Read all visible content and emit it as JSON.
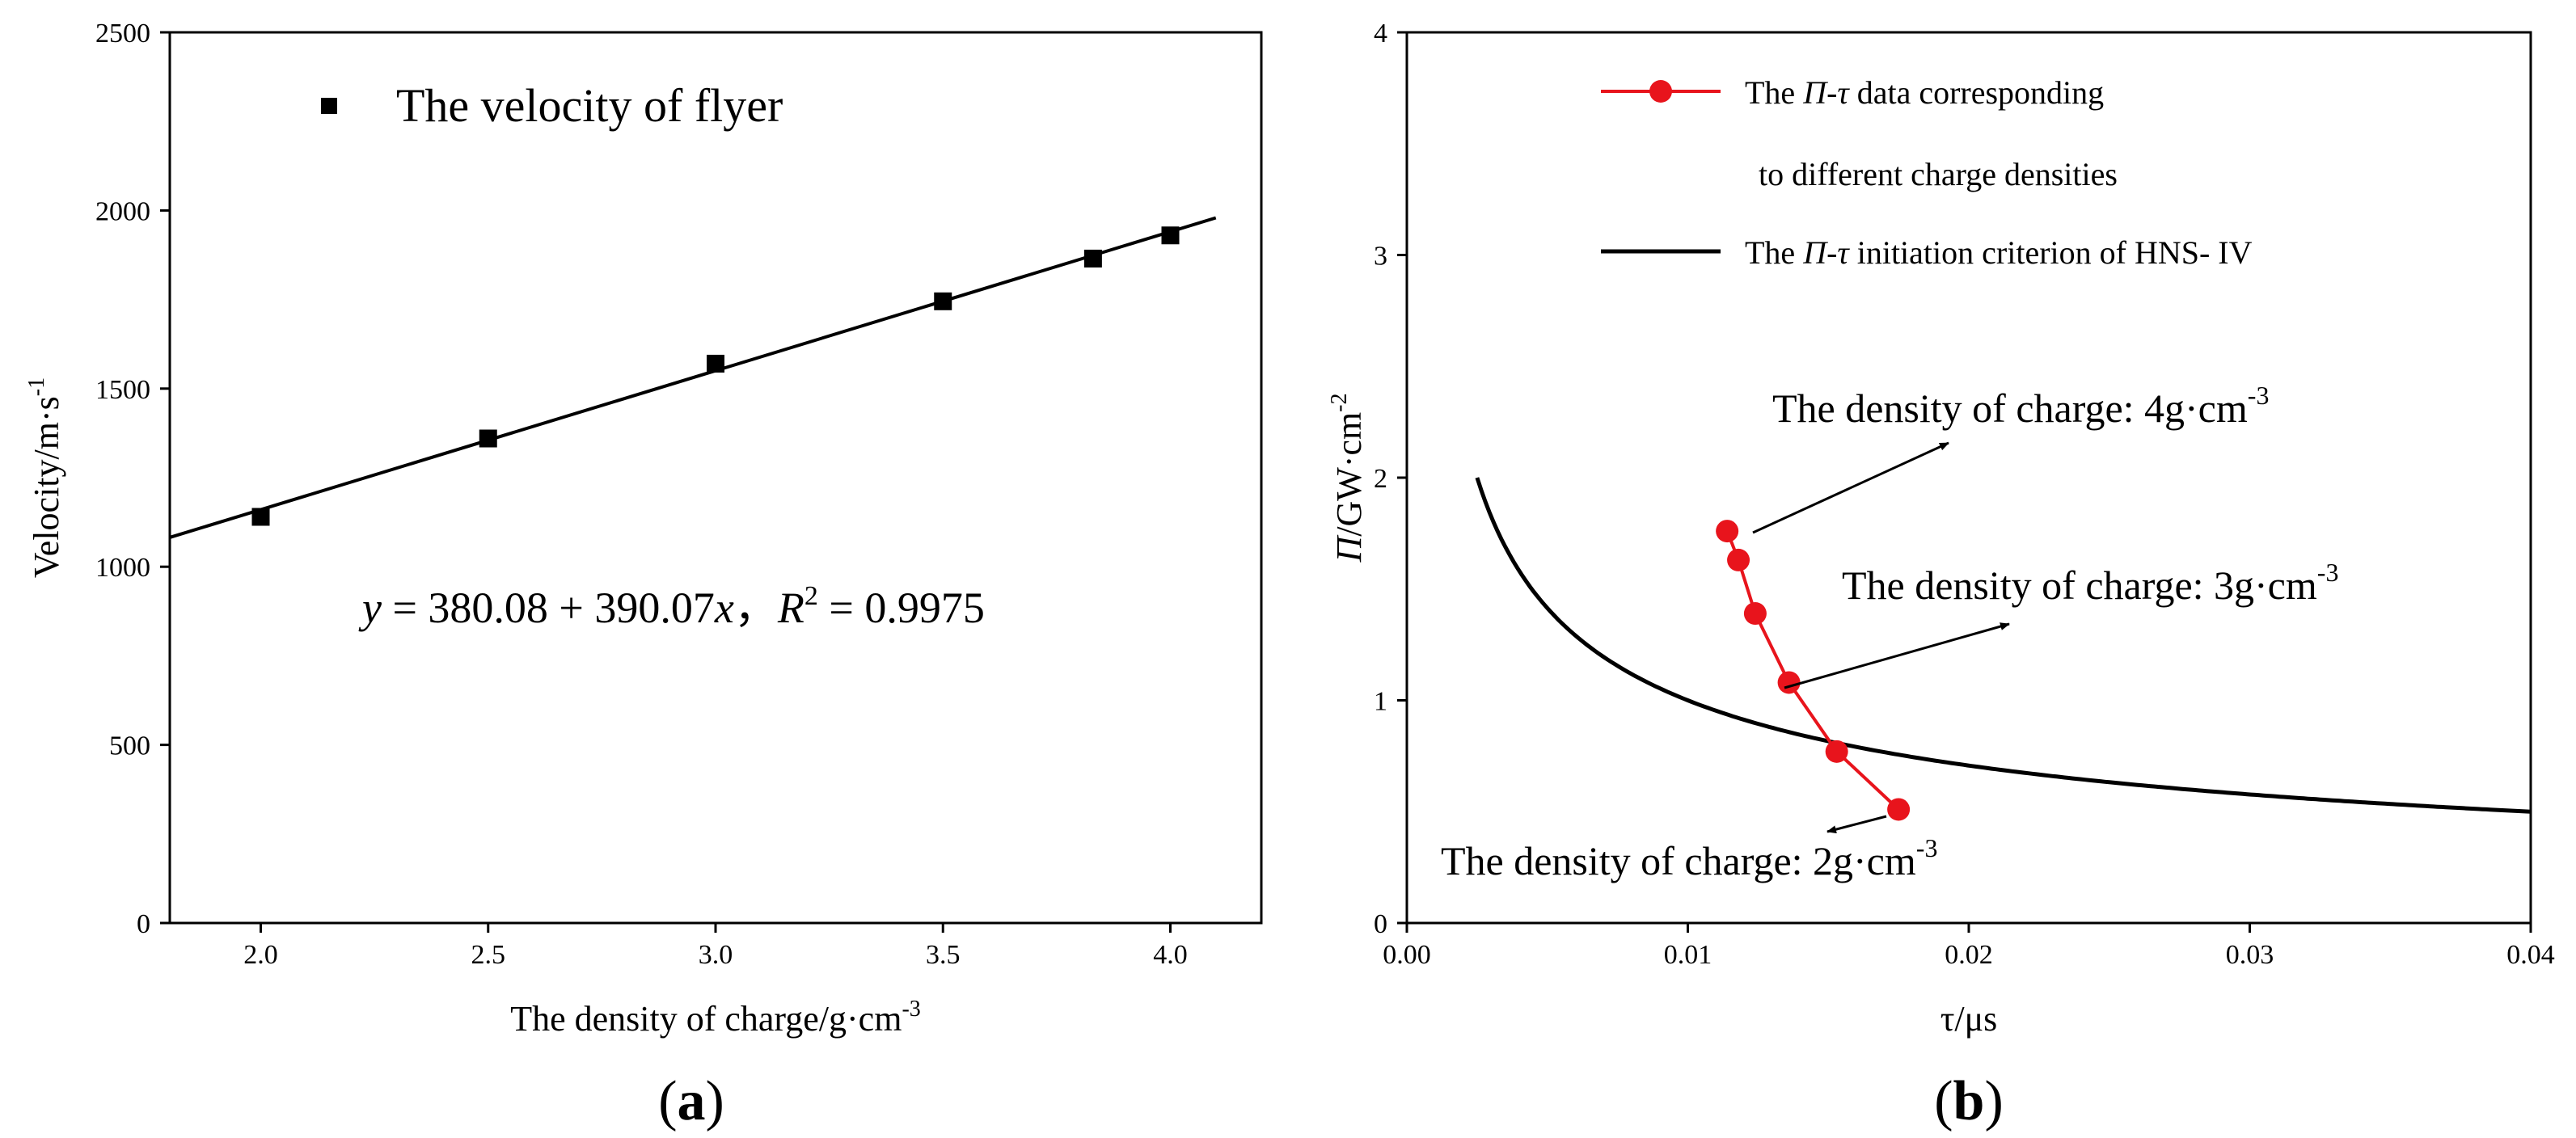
{
  "chart_data": [
    {
      "type": "scatter",
      "panel_label": "a",
      "xlabel": "The density of charge/g·cm",
      "xlabel_sup": "-3",
      "ylabel": "Velocity/m·s",
      "ylabel_sup": "-1",
      "xlim": [
        1.8,
        4.2
      ],
      "ylim": [
        0,
        2500
      ],
      "xticks": [
        2.0,
        2.5,
        3.0,
        3.5,
        4.0
      ],
      "xtick_labels": [
        "2.0",
        "2.5",
        "3.0",
        "3.5",
        "4.0"
      ],
      "yticks": [
        0,
        500,
        1000,
        1500,
        2000,
        2500
      ],
      "ytick_labels": [
        "0",
        "500",
        "1000",
        "1500",
        "2000",
        "2500"
      ],
      "legend": {
        "label": "The velocity of flyer",
        "placement": "top-left"
      },
      "series": [
        {
          "name": "The velocity of flyer",
          "marker": "square",
          "x": [
            2.0,
            2.5,
            3.0,
            3.5,
            3.83,
            4.0
          ],
          "y": [
            1140,
            1360,
            1570,
            1745,
            1865,
            1930
          ]
        }
      ],
      "fit": {
        "intercept": 380.08,
        "slope": 390.07,
        "x_range": [
          1.8,
          4.1
        ]
      },
      "equation": {
        "y": "y",
        "mid": " = 380.08 + 390.07",
        "x": "x",
        "sep": "，",
        "r": "R",
        "r_sup": "2",
        "value": " = 0.9975"
      }
    },
    {
      "type": "line",
      "panel_label": "b",
      "xlabel": "τ/μs",
      "ylabel_var": "Π",
      "ylabel": "/GW·cm",
      "ylabel_sup": "-2",
      "xlim": [
        0,
        0.04
      ],
      "ylim": [
        0,
        4
      ],
      "xticks": [
        0,
        0.01,
        0.02,
        0.03,
        0.04
      ],
      "xtick_labels": [
        "0.00",
        "0.01",
        "0.02",
        "0.03",
        "0.04"
      ],
      "yticks": [
        0,
        1,
        2,
        3,
        4
      ],
      "ytick_labels": [
        "0",
        "1",
        "2",
        "3",
        "4"
      ],
      "series": [
        {
          "name": "The Π-τ data corresponding to different charge densities",
          "color": "#e8141c",
          "marker": "circle",
          "x": [
            0.0114,
            0.0118,
            0.0124,
            0.0136,
            0.0153,
            0.0175
          ],
          "y": [
            1.76,
            1.63,
            1.39,
            1.08,
            0.77,
            0.51
          ]
        },
        {
          "name": "The Π-τ initiation criterion of HNS- IV",
          "color": "#000000",
          "function": "Pi^2 * tau = 0.01",
          "constant": 0.01,
          "x_range": [
            0.0025,
            0.04
          ]
        }
      ],
      "legend": {
        "placement": "top-right",
        "entry1_pre": "The ",
        "entry1_var": "Π-τ",
        "entry1_post": " data corresponding",
        "entry1_line2": "to different charge densities",
        "entry2_pre": "The ",
        "entry2_var": "Π-τ",
        "entry2_post": "  initiation criterion of HNS- IV"
      },
      "annotations": [
        {
          "text": "The density of charge: 4g·cm",
          "sup": "-3"
        },
        {
          "text": "The density of charge: 3g·cm",
          "sup": "-3"
        },
        {
          "text": "The density of charge: 2g·cm",
          "sup": "-3"
        }
      ]
    }
  ]
}
